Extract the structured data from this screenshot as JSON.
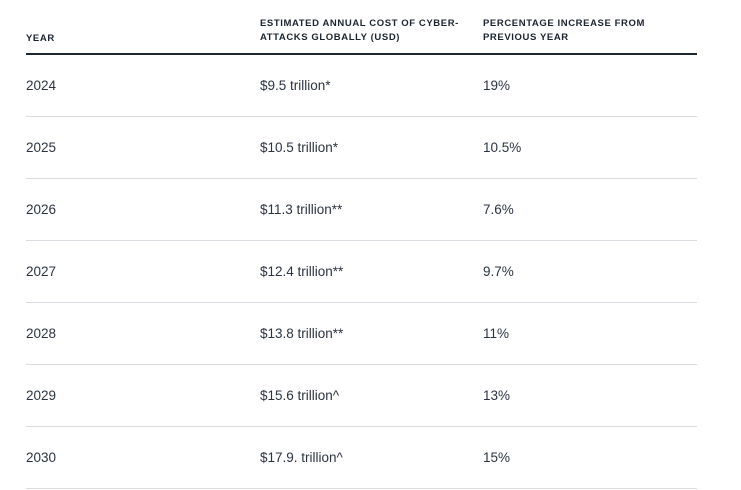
{
  "table": {
    "headers": {
      "year": "YEAR",
      "cost": "ESTIMATED ANNUAL COST OF CYBER-ATTACKS GLOBALLY (USD)",
      "increase": "PERCENTAGE INCREASE FROM PREVIOUS YEAR"
    },
    "rows": [
      {
        "year": "2024",
        "cost": "$9.5 trillion*",
        "increase": "19%"
      },
      {
        "year": "2025",
        "cost": "$10.5 trillion*",
        "increase": "10.5%"
      },
      {
        "year": "2026",
        "cost": "$11.3 trillion**",
        "increase": "7.6%"
      },
      {
        "year": "2027",
        "cost": "$12.4 trillion**",
        "increase": "9.7%"
      },
      {
        "year": "2028",
        "cost": "$13.8 trillion**",
        "increase": "11%"
      },
      {
        "year": "2029",
        "cost": "$15.6 trillion^",
        "increase": "13%"
      },
      {
        "year": "2030",
        "cost": "$17.9. trillion^",
        "increase": "15%"
      }
    ]
  }
}
